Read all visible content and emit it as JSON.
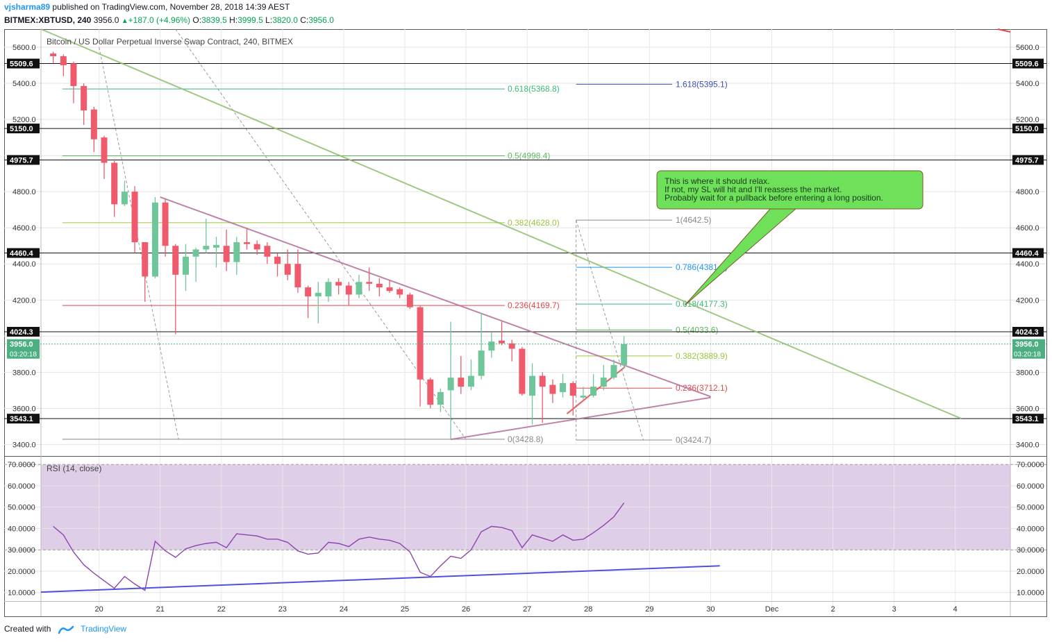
{
  "header": {
    "author": "vjsharma89",
    "published": "published on TradingView.com, November 28, 2018 14:39 AEST",
    "symbol": "BITMEX:XBTUSD, 240",
    "last": "3956.0",
    "change": "+187.0 (+4.96%)",
    "o_label": "O:",
    "o_value": "3839.5",
    "h_label": "H:",
    "h_value": "3999.5",
    "l_label": "L:",
    "l_value": "3820.0",
    "c_label": "C:",
    "c_value": "3956.0"
  },
  "footer": {
    "created_with": "Created with",
    "brand": "TradingView"
  },
  "colors": {
    "bull": "#6fc69b",
    "bear": "#ef5b6c",
    "rsi_band": "#d8c5e3",
    "rsi_line": "#8e44ad",
    "trend_blue": "#5050e0"
  },
  "chart_data": [
    {
      "type": "candlestick",
      "title": "Bitcoin / US Dollar Perpetual Inverse Swap Contract, 240, BITMEX",
      "ylim": [
        3340,
        5700
      ],
      "y_ticks": [
        3400,
        3600,
        3800,
        4000,
        4200,
        4400,
        4600,
        4800,
        5000,
        5200,
        5400,
        5600
      ],
      "y_tick_labels": [
        "3400.0",
        "3600.0",
        "3800.0",
        "",
        "4200.0",
        "4400.0",
        "4600.0",
        "4800.0",
        "",
        "5200.0",
        "5400.0",
        "5600.0"
      ],
      "x_labels": [
        {
          "t": 20,
          "label": "20"
        },
        {
          "t": 21,
          "label": "21"
        },
        {
          "t": 22,
          "label": "22"
        },
        {
          "t": 23,
          "label": "23"
        },
        {
          "t": 24,
          "label": "24"
        },
        {
          "t": 25,
          "label": "25"
        },
        {
          "t": 26,
          "label": "26"
        },
        {
          "t": 27,
          "label": "27"
        },
        {
          "t": 28,
          "label": "28"
        },
        {
          "t": 29,
          "label": "29"
        },
        {
          "t": 30,
          "label": "30"
        },
        {
          "t": 31,
          "label": "Dec"
        },
        {
          "t": 32,
          "label": "2"
        },
        {
          "t": 33,
          "label": "3"
        },
        {
          "t": 34,
          "label": "4"
        }
      ],
      "xlim": [
        19.05,
        34.9
      ],
      "candles": [
        {
          "t": 19.25,
          "o": 5565,
          "h": 5575,
          "l": 5510,
          "c": 5550
        },
        {
          "t": 19.417,
          "o": 5550,
          "h": 5560,
          "l": 5440,
          "c": 5500
        },
        {
          "t": 19.583,
          "o": 5510,
          "h": 5520,
          "l": 5290,
          "c": 5385
        },
        {
          "t": 19.75,
          "o": 5385,
          "h": 5400,
          "l": 5170,
          "c": 5250
        },
        {
          "t": 19.917,
          "o": 5255,
          "h": 5270,
          "l": 5020,
          "c": 5090
        },
        {
          "t": 20.083,
          "o": 5100,
          "h": 5110,
          "l": 4870,
          "c": 4960
        },
        {
          "t": 20.25,
          "o": 4960,
          "h": 4980,
          "l": 4660,
          "c": 4730
        },
        {
          "t": 20.417,
          "o": 4730,
          "h": 4860,
          "l": 4720,
          "c": 4800
        },
        {
          "t": 20.583,
          "o": 4800,
          "h": 4830,
          "l": 4460,
          "c": 4520
        },
        {
          "t": 20.75,
          "o": 4520,
          "h": 4520,
          "l": 4190,
          "c": 4330
        },
        {
          "t": 20.917,
          "o": 4330,
          "h": 4770,
          "l": 4320,
          "c": 4740
        },
        {
          "t": 21.083,
          "o": 4740,
          "h": 4760,
          "l": 4440,
          "c": 4500
        },
        {
          "t": 21.25,
          "o": 4500,
          "h": 4510,
          "l": 4010,
          "c": 4340
        },
        {
          "t": 21.417,
          "o": 4340,
          "h": 4510,
          "l": 4250,
          "c": 4440
        },
        {
          "t": 21.583,
          "o": 4440,
          "h": 4490,
          "l": 4300,
          "c": 4480
        },
        {
          "t": 21.75,
          "o": 4480,
          "h": 4650,
          "l": 4460,
          "c": 4500
        },
        {
          "t": 21.917,
          "o": 4490,
          "h": 4550,
          "l": 4380,
          "c": 4505
        },
        {
          "t": 22.083,
          "o": 4500,
          "h": 4590,
          "l": 4360,
          "c": 4410
        },
        {
          "t": 22.25,
          "o": 4410,
          "h": 4550,
          "l": 4340,
          "c": 4520
        },
        {
          "t": 22.417,
          "o": 4520,
          "h": 4600,
          "l": 4480,
          "c": 4510
        },
        {
          "t": 22.583,
          "o": 4510,
          "h": 4530,
          "l": 4450,
          "c": 4480
        },
        {
          "t": 22.75,
          "o": 4500,
          "h": 4520,
          "l": 4400,
          "c": 4440
        },
        {
          "t": 22.917,
          "o": 4440,
          "h": 4460,
          "l": 4330,
          "c": 4400
        },
        {
          "t": 23.083,
          "o": 4400,
          "h": 4480,
          "l": 4310,
          "c": 4340
        },
        {
          "t": 23.25,
          "o": 4400,
          "h": 4480,
          "l": 4240,
          "c": 4270
        },
        {
          "t": 23.417,
          "o": 4270,
          "h": 4280,
          "l": 4100,
          "c": 4220
        },
        {
          "t": 23.583,
          "o": 4220,
          "h": 4300,
          "l": 4070,
          "c": 4240
        },
        {
          "t": 23.75,
          "o": 4220,
          "h": 4320,
          "l": 4190,
          "c": 4300
        },
        {
          "t": 23.917,
          "o": 4300,
          "h": 4320,
          "l": 4230,
          "c": 4280
        },
        {
          "t": 24.083,
          "o": 4280,
          "h": 4300,
          "l": 4170,
          "c": 4230
        },
        {
          "t": 24.25,
          "o": 4230,
          "h": 4340,
          "l": 4210,
          "c": 4300
        },
        {
          "t": 24.417,
          "o": 4300,
          "h": 4380,
          "l": 4250,
          "c": 4290
        },
        {
          "t": 24.583,
          "o": 4290,
          "h": 4320,
          "l": 4220,
          "c": 4270
        },
        {
          "t": 24.75,
          "o": 4270,
          "h": 4310,
          "l": 4240,
          "c": 4250
        },
        {
          "t": 24.917,
          "o": 4260,
          "h": 4270,
          "l": 4210,
          "c": 4230
        },
        {
          "t": 25.083,
          "o": 4230,
          "h": 4240,
          "l": 4150,
          "c": 4160
        },
        {
          "t": 25.25,
          "o": 4160,
          "h": 4170,
          "l": 3610,
          "c": 3760
        },
        {
          "t": 25.417,
          "o": 3760,
          "h": 3770,
          "l": 3600,
          "c": 3620
        },
        {
          "t": 25.583,
          "o": 3620,
          "h": 3710,
          "l": 3580,
          "c": 3690
        },
        {
          "t": 25.75,
          "o": 3700,
          "h": 4080,
          "l": 3430,
          "c": 3770
        },
        {
          "t": 25.917,
          "o": 3770,
          "h": 3890,
          "l": 3680,
          "c": 3720
        },
        {
          "t": 26.083,
          "o": 3720,
          "h": 3870,
          "l": 3700,
          "c": 3780
        },
        {
          "t": 26.25,
          "o": 3780,
          "h": 4130,
          "l": 3760,
          "c": 3920
        },
        {
          "t": 26.417,
          "o": 3920,
          "h": 4020,
          "l": 3880,
          "c": 3970
        },
        {
          "t": 26.583,
          "o": 3975,
          "h": 4080,
          "l": 3950,
          "c": 3960
        },
        {
          "t": 26.75,
          "o": 3960,
          "h": 3980,
          "l": 3860,
          "c": 3930
        },
        {
          "t": 26.917,
          "o": 3930,
          "h": 3940,
          "l": 3670,
          "c": 3680
        },
        {
          "t": 27.083,
          "o": 3670,
          "h": 3850,
          "l": 3510,
          "c": 3780
        },
        {
          "t": 27.25,
          "o": 3780,
          "h": 3800,
          "l": 3520,
          "c": 3720
        },
        {
          "t": 27.417,
          "o": 3730,
          "h": 3760,
          "l": 3630,
          "c": 3680
        },
        {
          "t": 27.583,
          "o": 3690,
          "h": 3790,
          "l": 3660,
          "c": 3740
        },
        {
          "t": 27.75,
          "o": 3740,
          "h": 3750,
          "l": 3560,
          "c": 3670
        },
        {
          "t": 27.917,
          "o": 3660,
          "h": 3720,
          "l": 3650,
          "c": 3670
        },
        {
          "t": 28.083,
          "o": 3670,
          "h": 3790,
          "l": 3660,
          "c": 3720
        },
        {
          "t": 28.25,
          "o": 3720,
          "h": 3840,
          "l": 3700,
          "c": 3770
        },
        {
          "t": 28.417,
          "o": 3770,
          "h": 3870,
          "l": 3760,
          "c": 3840
        },
        {
          "t": 28.583,
          "o": 3840,
          "h": 4000,
          "l": 3820,
          "c": 3956
        }
      ],
      "horizontal_levels": [
        {
          "price": 5509.6,
          "label": "5509.6"
        },
        {
          "price": 5150.0,
          "label": "5150.0"
        },
        {
          "price": 4975.7,
          "label": "4975.7"
        },
        {
          "price": 4460.4,
          "label": "4460.4"
        },
        {
          "price": 4024.3,
          "label": "4024.3"
        },
        {
          "price": 3543.1,
          "label": "3543.1"
        }
      ],
      "last_price": {
        "price": 3956.0,
        "label": "3956.0",
        "countdown": "03:20:18"
      },
      "fib_left": [
        {
          "price": 5368.8,
          "label": "0.618(5368.8)",
          "color": "#3bb87a"
        },
        {
          "price": 4998.4,
          "label": "0.5(4998.4)",
          "color": "#5cb85c"
        },
        {
          "price": 4628.0,
          "label": "0.382(4628.0)",
          "color": "#9cc43c"
        },
        {
          "price": 4169.7,
          "label": "0.236(4169.7)",
          "color": "#e04848"
        },
        {
          "price": 3428.8,
          "label": "0(3428.8)",
          "color": "#888888"
        }
      ],
      "fib_right": [
        {
          "price": 5395.1,
          "label": "1.618(5395.1)",
          "color": "#3f51b5"
        },
        {
          "price": 4642.5,
          "label": "1(4642.5)",
          "color": "#888888"
        },
        {
          "price": 4381.3,
          "label": "0.786(4381.3)",
          "color": "#2196f3"
        },
        {
          "price": 4177.3,
          "label": "0.618(4177.3)",
          "color": "#3bb87a"
        },
        {
          "price": 4033.6,
          "label": "0.5(4033.6)",
          "color": "#5cb85c"
        },
        {
          "price": 3889.9,
          "label": "0.382(3889.9)",
          "color": "#9cc43c"
        },
        {
          "price": 3712.1,
          "label": "0.236(3712.1)",
          "color": "#e04848"
        },
        {
          "price": 3424.7,
          "label": "0(3424.7)",
          "color": "#888888"
        }
      ],
      "trendlines": [
        {
          "t1": 19.05,
          "p1": 5700,
          "t2": 34.1,
          "p2": 3543,
          "color": "#8fbf6f"
        },
        {
          "t1": 21.0,
          "p1": 4770,
          "t2": 30.0,
          "p2": 3665,
          "color": "#b46e98"
        },
        {
          "t1": 25.75,
          "p1": 3428,
          "t2": 30.0,
          "p2": 3660,
          "color": "#b46e98"
        },
        {
          "t1": 27.65,
          "p1": 3570,
          "t2": 28.6,
          "p2": 3830,
          "color": "#e04848"
        }
      ],
      "annotation": {
        "lines": [
          "This is where it should relax.",
          "If not, my SL will hit and I'll reassess the market.",
          "Probably wait for a pullback before entering a long position."
        ]
      }
    },
    {
      "type": "line",
      "title": "RSI (14, close)",
      "ylim": [
        6,
        73
      ],
      "y_ticks": [
        10,
        20,
        30,
        40,
        50,
        60,
        70
      ],
      "y_tick_labels": [
        "10.0000",
        "20.0000",
        "30.0000",
        "40.0000",
        "50.0000",
        "60.0000",
        "70.0000"
      ],
      "band": [
        30,
        70
      ],
      "x": [
        19.25,
        19.417,
        19.583,
        19.75,
        19.917,
        20.083,
        20.25,
        20.417,
        20.583,
        20.75,
        20.917,
        21.083,
        21.25,
        21.417,
        21.583,
        21.75,
        21.917,
        22.083,
        22.25,
        22.417,
        22.583,
        22.75,
        22.917,
        23.083,
        23.25,
        23.417,
        23.583,
        23.75,
        23.917,
        24.083,
        24.25,
        24.417,
        24.583,
        24.75,
        24.917,
        25.083,
        25.25,
        25.417,
        25.583,
        25.75,
        25.917,
        26.083,
        26.25,
        26.417,
        26.583,
        26.75,
        26.917,
        27.083,
        27.25,
        27.417,
        27.583,
        27.75,
        27.917,
        28.083,
        28.25,
        28.417,
        28.583
      ],
      "values": [
        41,
        37,
        29,
        23,
        19,
        15.5,
        12,
        17.5,
        14,
        11,
        34,
        29.5,
        26.5,
        30.5,
        32,
        33,
        33.5,
        31,
        37.5,
        37,
        36.5,
        35,
        35,
        33.5,
        29.5,
        28,
        28.5,
        33.5,
        33,
        31.5,
        35,
        36,
        35,
        34.5,
        33,
        29,
        19.5,
        17.5,
        22.5,
        27,
        26,
        30,
        38.5,
        41,
        40.5,
        39,
        31,
        37,
        35.5,
        34,
        37,
        34.5,
        35,
        38,
        41.5,
        45.5,
        52
      ],
      "trendline": {
        "t1": 19.05,
        "v1": 10.2,
        "t2": 30.15,
        "v2": 22.5
      }
    }
  ]
}
